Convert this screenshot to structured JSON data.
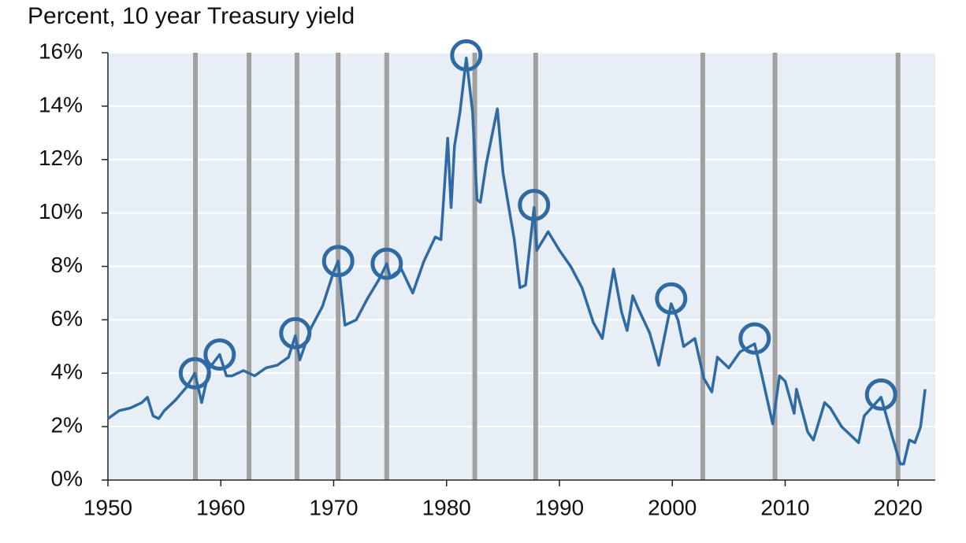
{
  "chart_data": {
    "type": "line",
    "title": "Percent, 10 year Treasury yield",
    "x": [
      1950,
      1951,
      1952,
      1953,
      1953.5,
      1954,
      1954.5,
      1955,
      1956,
      1957,
      1957.7,
      1958.3,
      1959,
      1959.9,
      1960.5,
      1961,
      1962,
      1963,
      1964,
      1965,
      1966,
      1966.6,
      1967,
      1968,
      1969,
      1970,
      1970.4,
      1971,
      1972,
      1973,
      1974,
      1974.7,
      1975,
      1976,
      1977,
      1978,
      1979,
      1979.5,
      1980.1,
      1980.4,
      1980.7,
      1981.2,
      1981.75,
      1982.3,
      1982.7,
      1983,
      1983.5,
      1984.5,
      1985,
      1986,
      1986.5,
      1987,
      1987.75,
      1988,
      1989,
      1990,
      1991,
      1992,
      1993,
      1993.8,
      1994.8,
      1995.5,
      1996,
      1996.5,
      1997,
      1998,
      1998.8,
      1999.9,
      2000.5,
      2001,
      2002,
      2002.8,
      2003.5,
      2004,
      2005,
      2006,
      2007.3,
      2008,
      2008.9,
      2009.5,
      2010,
      2010.8,
      2011,
      2012,
      2012.5,
      2013.5,
      2014,
      2015,
      2016.5,
      2017,
      2018.5,
      2019.5,
      2020.2,
      2020.5,
      2021,
      2021.5,
      2022,
      2022.4
    ],
    "series": [
      {
        "name": "10 year Treasury yield",
        "color": "#2f6aa3",
        "values": [
          2.3,
          2.6,
          2.7,
          2.9,
          3.1,
          2.4,
          2.3,
          2.6,
          3.0,
          3.5,
          4.0,
          2.9,
          4.2,
          4.7,
          3.9,
          3.9,
          4.1,
          3.9,
          4.2,
          4.3,
          4.6,
          5.4,
          4.5,
          5.7,
          6.5,
          7.8,
          8.2,
          5.8,
          6.0,
          6.8,
          7.5,
          8.1,
          7.6,
          7.9,
          7.0,
          8.2,
          9.1,
          9.0,
          12.8,
          10.2,
          12.5,
          13.8,
          15.8,
          13.8,
          10.5,
          10.4,
          11.8,
          13.9,
          11.5,
          9.0,
          7.2,
          7.3,
          10.2,
          8.6,
          9.3,
          8.6,
          8.0,
          7.2,
          5.9,
          5.3,
          7.9,
          6.3,
          5.6,
          6.9,
          6.4,
          5.5,
          4.3,
          6.6,
          6.0,
          5.0,
          5.3,
          3.8,
          3.3,
          4.6,
          4.2,
          4.8,
          5.1,
          3.8,
          2.1,
          3.9,
          3.7,
          2.5,
          3.4,
          1.8,
          1.5,
          2.9,
          2.7,
          2.0,
          1.4,
          2.4,
          3.1,
          1.6,
          0.6,
          0.6,
          1.5,
          1.4,
          2.0,
          3.4
        ]
      }
    ],
    "recession_lines": [
      1957.75,
      1962.5,
      1966.75,
      1970.4,
      1974.7,
      1982.5,
      1987.9,
      2002.7,
      2009.1,
      2020.0
    ],
    "highlights": {
      "x": [
        1957.7,
        1959.9,
        1966.6,
        1970.4,
        1974.7,
        1981.75,
        1987.75,
        1999.9,
        2007.3,
        2018.5
      ],
      "y": [
        4.0,
        4.7,
        5.5,
        8.2,
        8.1,
        15.9,
        10.3,
        6.8,
        5.3,
        3.2
      ]
    },
    "xlim": [
      1950,
      2023.3
    ],
    "xticks": [
      1950,
      1960,
      1970,
      1980,
      1990,
      2000,
      2010,
      2020
    ],
    "ylim": [
      0,
      16
    ],
    "yticks": [
      {
        "value": 0,
        "label": "0%"
      },
      {
        "value": 2,
        "label": "2%"
      },
      {
        "value": 4,
        "label": "4%"
      },
      {
        "value": 6,
        "label": "6%"
      },
      {
        "value": 8,
        "label": "8%"
      },
      {
        "value": 10,
        "label": "10%"
      },
      {
        "value": 12,
        "label": "12%"
      },
      {
        "value": 14,
        "label": "14%"
      },
      {
        "value": 16,
        "label": "16%"
      }
    ],
    "grid": true
  }
}
